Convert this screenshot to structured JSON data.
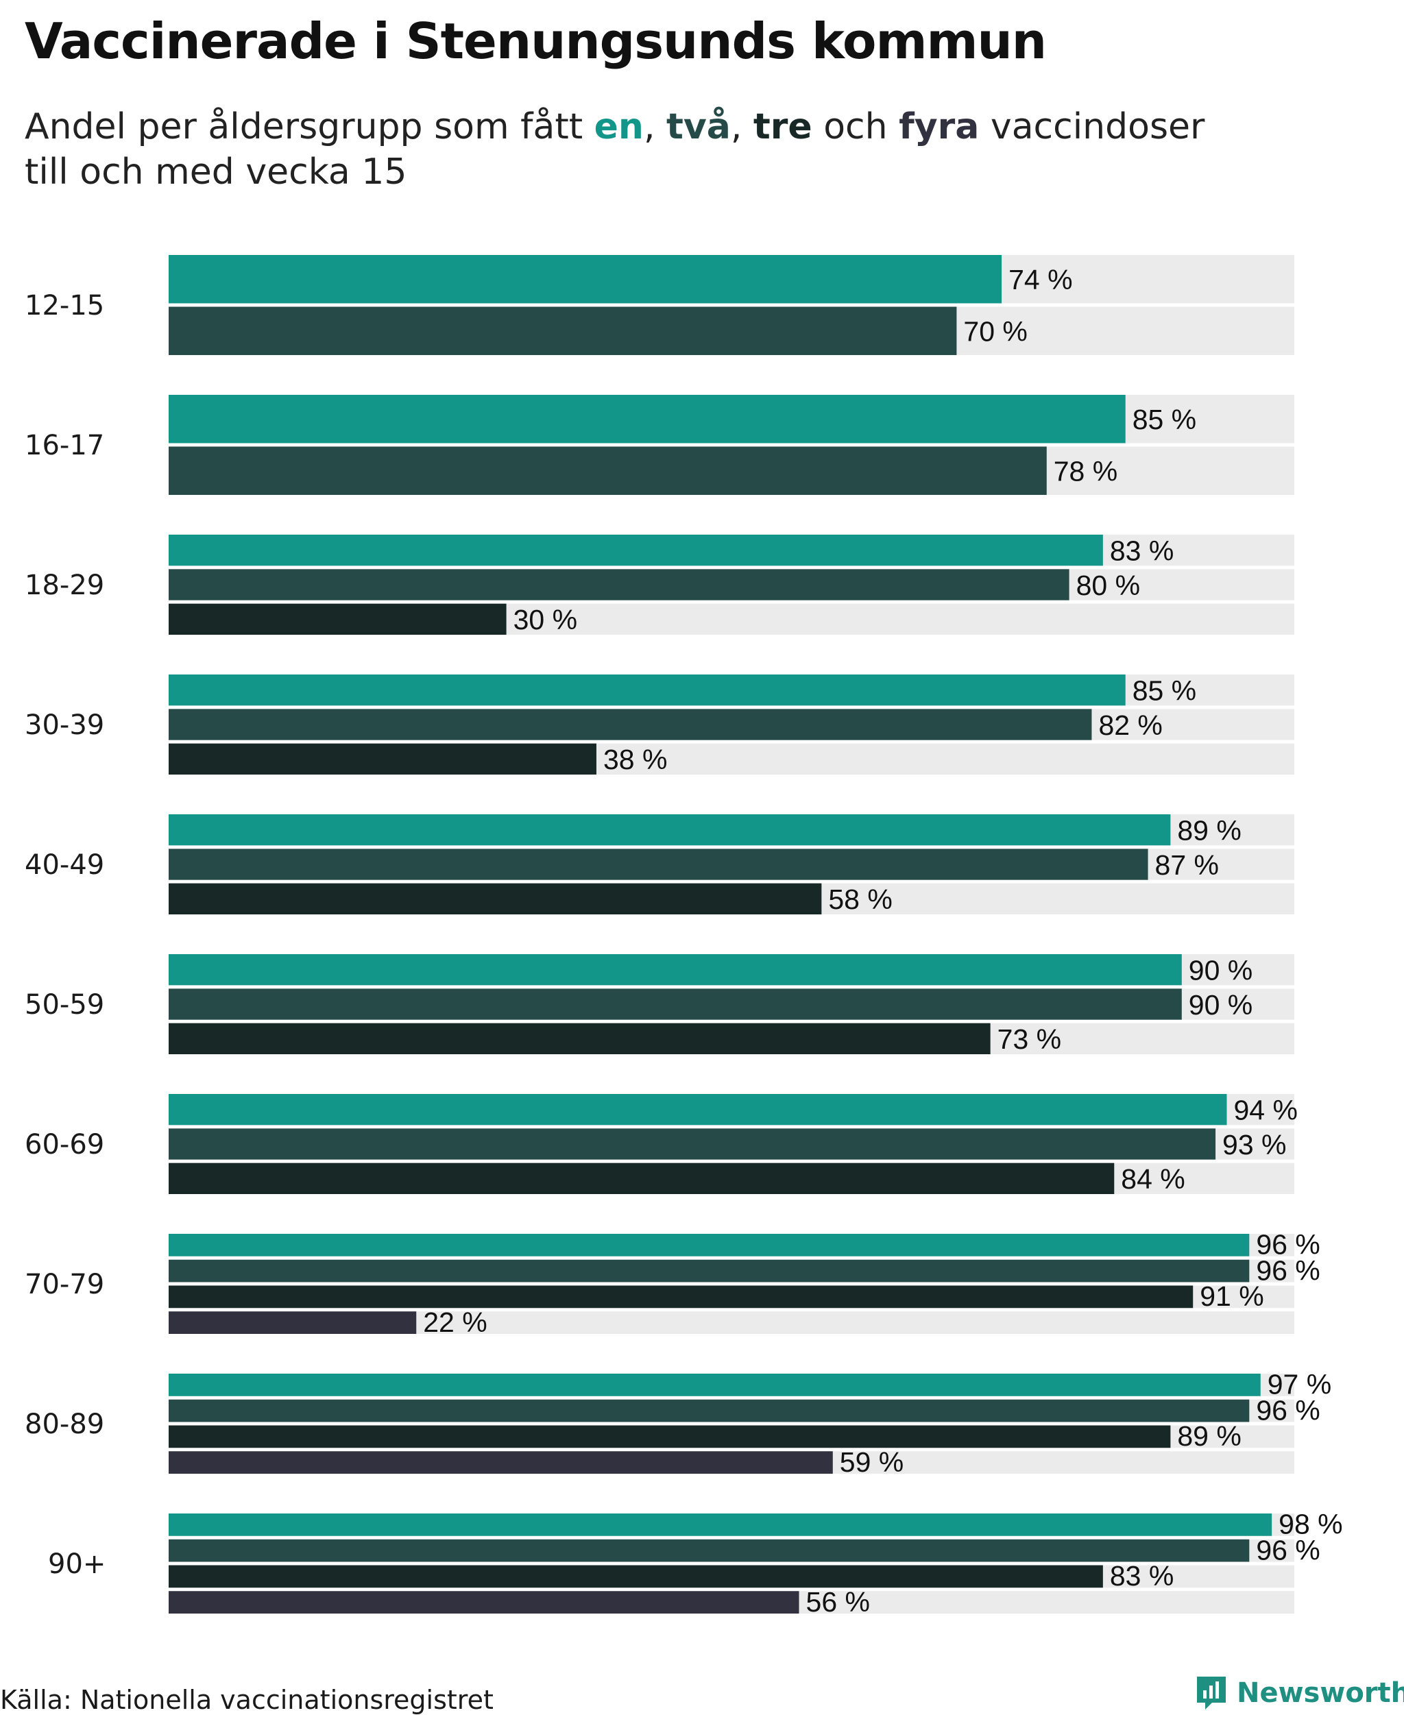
{
  "title": "Vaccinerade i Stenungsunds kommun",
  "subtitle": {
    "prefix": "Andel per åldersgrupp som fått ",
    "dose1": "en",
    "sep1": ", ",
    "dose2": "två",
    "sep2": ", ",
    "dose3": "tre",
    "sep3": " och ",
    "dose4": "fyra",
    "suffix": " vaccindoser",
    "line2": "till och med vecka 15"
  },
  "colors": {
    "dose1": "#12968a",
    "dose2": "#264a47",
    "dose3": "#182826",
    "dose4": "#32313f",
    "track": "#ebebeb",
    "brand": "#1e8f80"
  },
  "chart_data": {
    "type": "bar",
    "orientation": "horizontal",
    "title": "Vaccinerade i Stenungsunds kommun",
    "categories": [
      "12-15",
      "16-17",
      "18-29",
      "30-39",
      "40-49",
      "50-59",
      "60-69",
      "70-79",
      "80-89",
      "90+"
    ],
    "series": [
      {
        "name": "en",
        "values": [
          74,
          85,
          83,
          85,
          89,
          90,
          94,
          96,
          97,
          98
        ]
      },
      {
        "name": "två",
        "values": [
          70,
          78,
          80,
          82,
          87,
          90,
          93,
          96,
          96,
          96
        ]
      },
      {
        "name": "tre",
        "values": [
          null,
          null,
          30,
          38,
          58,
          73,
          84,
          91,
          89,
          83
        ]
      },
      {
        "name": "fyra",
        "values": [
          null,
          null,
          null,
          null,
          null,
          null,
          null,
          22,
          59,
          56
        ]
      }
    ],
    "value_suffix": " %",
    "xlim": [
      0,
      100
    ],
    "grid": false
  },
  "footer": {
    "source": "Källa: Nationella vaccinationsregistret",
    "brand": "Newsworthy"
  }
}
